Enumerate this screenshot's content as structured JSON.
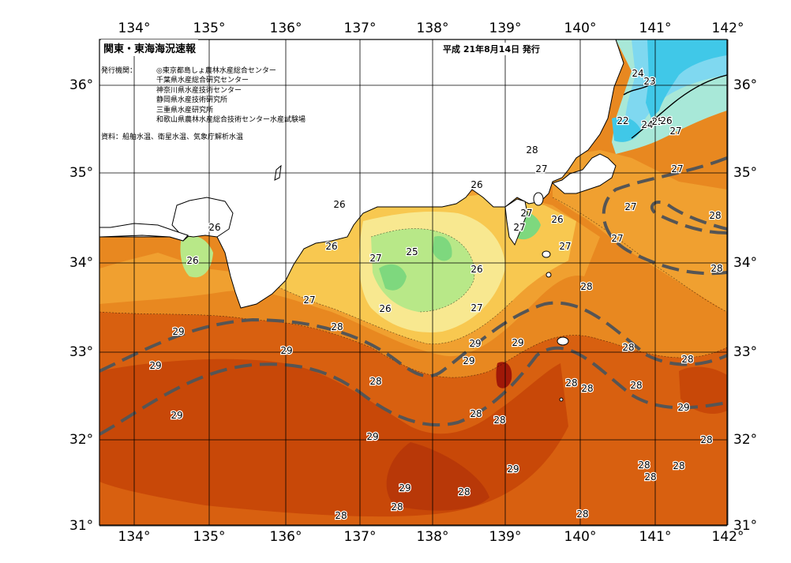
{
  "map": {
    "title": "関東・東海海況速報",
    "issue_date": "平成  21年8月14日  発行",
    "issuers_label": "発行機関：",
    "issuers": [
      "◎東京都島しょ農林水産総合センター",
      "千葉県水産総合研究センター",
      "神奈川県水産技術センター",
      "静岡県水産技術研究所",
      "三重県水産研究所",
      "和歌山県農林水産総合技術センター水産試験場"
    ],
    "sources": "資料：船舶水温、衛星水温、気象庁解析水温",
    "lon_labels": [
      "134°",
      "135°",
      "136°",
      "137°",
      "138°",
      "139°",
      "140°",
      "141°",
      "142°"
    ],
    "lat_labels": [
      "36°",
      "35°",
      "34°",
      "33°",
      "32°",
      "31°"
    ],
    "isotherm_labels": [
      {
        "text": "24"
      },
      {
        "text": "23"
      },
      {
        "text": "22"
      },
      {
        "text": "24"
      },
      {
        "text": "25"
      },
      {
        "text": "26"
      },
      {
        "text": "27"
      },
      {
        "text": "27"
      },
      {
        "text": "28"
      },
      {
        "text": "27"
      },
      {
        "text": "26"
      },
      {
        "text": "26"
      },
      {
        "text": "26"
      },
      {
        "text": "26"
      },
      {
        "text": "26"
      },
      {
        "text": "27"
      },
      {
        "text": "25"
      },
      {
        "text": "27"
      },
      {
        "text": "27"
      },
      {
        "text": "26"
      },
      {
        "text": "26"
      },
      {
        "text": "26"
      },
      {
        "text": "27"
      },
      {
        "text": "27"
      },
      {
        "text": "27"
      },
      {
        "text": "28"
      },
      {
        "text": "27"
      },
      {
        "text": "27"
      },
      {
        "text": "28"
      },
      {
        "text": "28"
      },
      {
        "text": "28"
      },
      {
        "text": "29"
      },
      {
        "text": "29"
      },
      {
        "text": "29"
      },
      {
        "text": "29"
      },
      {
        "text": "29"
      },
      {
        "text": "28"
      },
      {
        "text": "28"
      },
      {
        "text": "28"
      },
      {
        "text": "28"
      },
      {
        "text": "28"
      },
      {
        "text": "28"
      },
      {
        "text": "29"
      },
      {
        "text": "29"
      },
      {
        "text": "29"
      },
      {
        "text": "28"
      },
      {
        "text": "28"
      },
      {
        "text": "29"
      },
      {
        "text": "29"
      },
      {
        "text": "28"
      },
      {
        "text": "28"
      },
      {
        "text": "28"
      },
      {
        "text": "28"
      },
      {
        "text": "28"
      },
      {
        "text": "28"
      },
      {
        "text": "29"
      },
      {
        "text": "28"
      },
      {
        "text": "28"
      }
    ],
    "colors": {
      "t22": "#40c8e8",
      "t23": "#7fd8f0",
      "t24": "#a8e8d8",
      "t25": "#7ed87e",
      "t26": "#b8e888",
      "t27": "#f8e890",
      "t27b": "#f8c850",
      "t28": "#f0a030",
      "t28b": "#e88820",
      "t29": "#d86010",
      "t30": "#b83808",
      "t31": "#a01808",
      "land": "#ffffff",
      "kuroshio_axis": "#555555",
      "grid": "#000000"
    }
  }
}
